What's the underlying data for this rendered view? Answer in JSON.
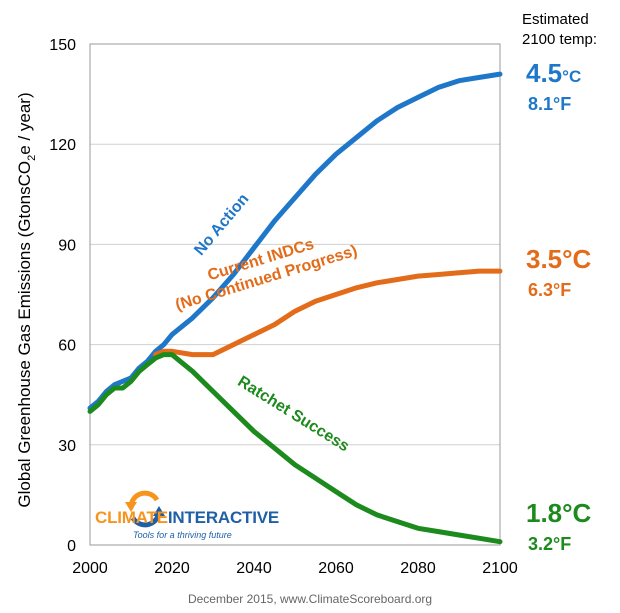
{
  "estimated_label": "Estimated 2100 temp:",
  "credit": "December 2015, www.ClimateScoreboard.org",
  "logo": {
    "name_part1": "CLIMATE",
    "name_part2": "INTERACTIVE",
    "tagline": "Tools for a thriving future"
  },
  "chart_data": {
    "type": "line",
    "title": "",
    "xlabel": "",
    "ylabel": "Global Greenhouse Gas Emissions  (GtonsCO2e / year)",
    "ylabel_parts": {
      "pre": "Global Greenhouse Gas Emissions  (GtonsCO",
      "sub": "2",
      "post": "e / year)"
    },
    "xlim": [
      2000,
      2100
    ],
    "ylim": [
      0,
      150
    ],
    "xticks": [
      2000,
      2020,
      2040,
      2060,
      2080,
      2100
    ],
    "yticks": [
      0,
      30,
      60,
      90,
      120,
      150
    ],
    "grid": "horizontal",
    "series": [
      {
        "name": "No Action",
        "color": "#1f77c9",
        "label_lines": [
          "No Action"
        ],
        "temp_c": "4.5°C",
        "temp_c_value": "4.5",
        "temp_c_unit": "°C",
        "temp_f": "8.1°F",
        "points": [
          [
            2000,
            41
          ],
          [
            2002,
            43
          ],
          [
            2004,
            46
          ],
          [
            2006,
            48
          ],
          [
            2008,
            49
          ],
          [
            2010,
            50
          ],
          [
            2012,
            53
          ],
          [
            2014,
            55
          ],
          [
            2016,
            58
          ],
          [
            2018,
            60
          ],
          [
            2020,
            63
          ],
          [
            2025,
            68
          ],
          [
            2030,
            74
          ],
          [
            2035,
            81
          ],
          [
            2040,
            89
          ],
          [
            2045,
            97
          ],
          [
            2050,
            104
          ],
          [
            2055,
            111
          ],
          [
            2060,
            117
          ],
          [
            2065,
            122
          ],
          [
            2070,
            127
          ],
          [
            2075,
            131
          ],
          [
            2080,
            134
          ],
          [
            2085,
            137
          ],
          [
            2090,
            139
          ],
          [
            2095,
            140
          ],
          [
            2100,
            141
          ]
        ]
      },
      {
        "name": "Current INDCs (No Continued Progress)",
        "color": "#e36c1b",
        "label_lines": [
          "Current INDCs",
          "(No Continued Progress)"
        ],
        "temp_c": "3.5°C",
        "temp_f": "6.3°F",
        "points": [
          [
            2016,
            57
          ],
          [
            2018,
            58
          ],
          [
            2020,
            58
          ],
          [
            2025,
            57
          ],
          [
            2030,
            57
          ],
          [
            2035,
            60
          ],
          [
            2040,
            63
          ],
          [
            2045,
            66
          ],
          [
            2050,
            70
          ],
          [
            2055,
            73
          ],
          [
            2060,
            75
          ],
          [
            2065,
            77
          ],
          [
            2070,
            78.5
          ],
          [
            2075,
            79.5
          ],
          [
            2080,
            80.5
          ],
          [
            2085,
            81
          ],
          [
            2090,
            81.5
          ],
          [
            2095,
            82
          ],
          [
            2100,
            82
          ]
        ]
      },
      {
        "name": "Ratchet Success",
        "color": "#1d8a1d",
        "label_lines": [
          "Ratchet Success"
        ],
        "temp_c": "1.8°C",
        "temp_f": "3.2°F",
        "points": [
          [
            2000,
            40
          ],
          [
            2002,
            42
          ],
          [
            2004,
            45
          ],
          [
            2006,
            47
          ],
          [
            2008,
            47
          ],
          [
            2010,
            49
          ],
          [
            2012,
            52
          ],
          [
            2014,
            54
          ],
          [
            2016,
            56
          ],
          [
            2018,
            57
          ],
          [
            2020,
            57
          ],
          [
            2022,
            55
          ],
          [
            2025,
            52
          ],
          [
            2030,
            46
          ],
          [
            2035,
            40
          ],
          [
            2040,
            34
          ],
          [
            2045,
            29
          ],
          [
            2050,
            24
          ],
          [
            2055,
            20
          ],
          [
            2060,
            16
          ],
          [
            2065,
            12
          ],
          [
            2070,
            9
          ],
          [
            2075,
            7
          ],
          [
            2080,
            5
          ],
          [
            2085,
            4
          ],
          [
            2090,
            3
          ],
          [
            2095,
            2
          ],
          [
            2100,
            1
          ]
        ]
      }
    ]
  }
}
